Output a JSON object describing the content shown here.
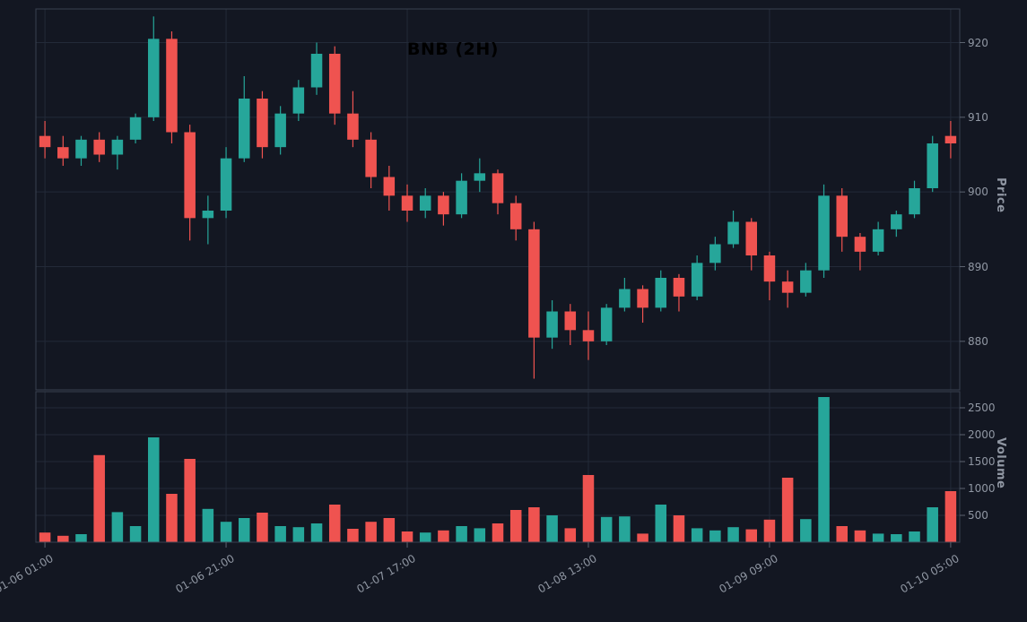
{
  "chart": {
    "title": "BNB (2H)",
    "price_axis_label": "Price",
    "volume_axis_label": "Volume"
  },
  "colors": {
    "background": "#131722",
    "up": "#26a69a",
    "down": "#ef5350",
    "grid": "#232a38",
    "panel_border": "#3a4150",
    "axis_tick": "#5c6370",
    "tick_text": "#9097a3",
    "title_text": "#000000"
  },
  "chart_data": {
    "type": "candlestick",
    "title": "BNB (2H)",
    "symbol": "BNB",
    "interval": "2H",
    "legend_position": "none",
    "grid": true,
    "price_ticks": [
      880,
      890,
      900,
      910,
      920
    ],
    "volume_ticks": [
      500,
      1000,
      1500,
      2000,
      2500
    ],
    "price_ylim": [
      873.5,
      924.5
    ],
    "volume_ylim": [
      0,
      2800
    ],
    "x_tick_indices": [
      0,
      10,
      20,
      30,
      40,
      50
    ],
    "x_tick_labels": [
      "01-06 01:00",
      "01-06 21:00",
      "01-07 17:00",
      "01-08 13:00",
      "01-09 09:00",
      "01-10 05:00"
    ],
    "columns": [
      "open",
      "high",
      "low",
      "close",
      "volume"
    ],
    "ohlcv": [
      [
        907.5,
        909.5,
        904.5,
        906.0,
        180
      ],
      [
        906.0,
        907.5,
        903.5,
        904.5,
        120
      ],
      [
        904.5,
        907.5,
        903.5,
        907.0,
        150
      ],
      [
        907.0,
        908.0,
        904.0,
        905.0,
        1620
      ],
      [
        905.0,
        907.5,
        903.0,
        907.0,
        560
      ],
      [
        907.0,
        910.5,
        906.5,
        910.0,
        300
      ],
      [
        910.0,
        923.5,
        909.5,
        920.5,
        1950
      ],
      [
        920.5,
        921.5,
        906.5,
        908.0,
        900
      ],
      [
        908.0,
        909.0,
        893.5,
        896.5,
        1550
      ],
      [
        896.5,
        899.5,
        893.0,
        897.5,
        620
      ],
      [
        897.5,
        906.0,
        896.5,
        904.5,
        380
      ],
      [
        904.5,
        915.5,
        904.0,
        912.5,
        450
      ],
      [
        912.5,
        913.5,
        904.5,
        906.0,
        550
      ],
      [
        906.0,
        911.5,
        905.0,
        910.5,
        300
      ],
      [
        910.5,
        915.0,
        909.5,
        914.0,
        280
      ],
      [
        914.0,
        920.0,
        913.0,
        918.5,
        350
      ],
      [
        918.5,
        919.5,
        909.0,
        910.5,
        700
      ],
      [
        910.5,
        913.5,
        906.0,
        907.0,
        250
      ],
      [
        907.0,
        908.0,
        900.5,
        902.0,
        380
      ],
      [
        902.0,
        903.5,
        897.5,
        899.5,
        450
      ],
      [
        899.5,
        901.0,
        896.0,
        897.5,
        200
      ],
      [
        897.5,
        900.5,
        896.5,
        899.5,
        180
      ],
      [
        899.5,
        900.0,
        895.5,
        897.0,
        220
      ],
      [
        897.0,
        902.5,
        896.5,
        901.5,
        300
      ],
      [
        901.5,
        904.5,
        900.0,
        902.5,
        260
      ],
      [
        902.5,
        903.0,
        897.0,
        898.5,
        350
      ],
      [
        898.5,
        899.5,
        893.5,
        895.0,
        600
      ],
      [
        895.0,
        896.0,
        875.0,
        880.5,
        650
      ],
      [
        880.5,
        885.5,
        879.0,
        884.0,
        500
      ],
      [
        884.0,
        885.0,
        879.5,
        881.5,
        260
      ],
      [
        881.5,
        884.0,
        877.5,
        880.0,
        1250
      ],
      [
        880.0,
        885.0,
        879.5,
        884.5,
        470
      ],
      [
        884.5,
        888.5,
        884.0,
        887.0,
        480
      ],
      [
        887.0,
        887.5,
        882.5,
        884.5,
        160
      ],
      [
        884.5,
        889.5,
        884.0,
        888.5,
        700
      ],
      [
        888.5,
        889.0,
        884.0,
        886.0,
        500
      ],
      [
        886.0,
        891.5,
        885.5,
        890.5,
        260
      ],
      [
        890.5,
        894.0,
        889.5,
        893.0,
        220
      ],
      [
        893.0,
        897.5,
        892.5,
        896.0,
        280
      ],
      [
        896.0,
        896.5,
        889.5,
        891.5,
        240
      ],
      [
        891.5,
        892.0,
        885.5,
        888.0,
        420
      ],
      [
        888.0,
        889.5,
        884.5,
        886.5,
        1200
      ],
      [
        886.5,
        890.5,
        886.0,
        889.5,
        430
      ],
      [
        889.5,
        901.0,
        888.5,
        899.5,
        2700
      ],
      [
        899.5,
        900.5,
        892.0,
        894.0,
        300
      ],
      [
        894.0,
        894.5,
        889.5,
        892.0,
        220
      ],
      [
        892.0,
        896.0,
        891.5,
        895.0,
        160
      ],
      [
        895.0,
        897.5,
        894.0,
        897.0,
        150
      ],
      [
        897.0,
        901.5,
        896.5,
        900.5,
        200
      ],
      [
        900.5,
        907.5,
        900.0,
        906.5,
        650
      ],
      [
        907.5,
        909.5,
        904.5,
        906.5,
        950
      ]
    ]
  }
}
